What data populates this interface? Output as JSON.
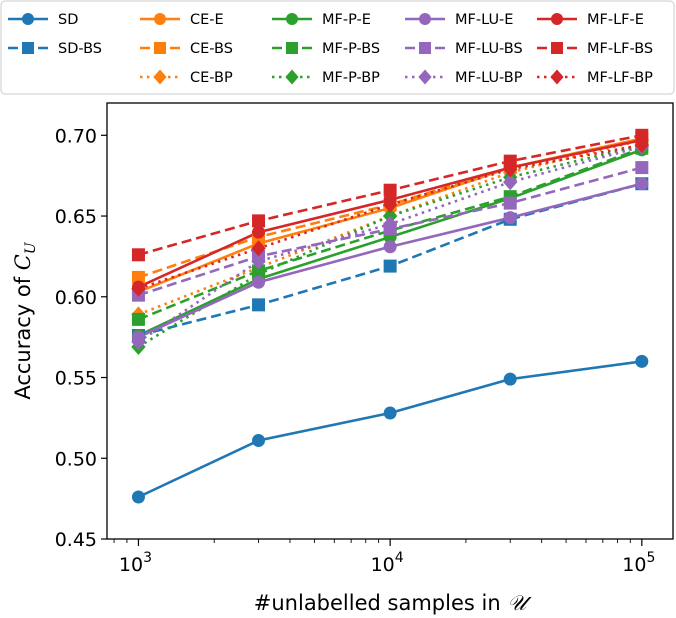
{
  "chart_data": {
    "type": "line",
    "x": [
      1000,
      3000,
      10000,
      30000,
      100000
    ],
    "xscale": "log",
    "xlim": [
      750,
      133000
    ],
    "ylim": [
      0.45,
      0.72
    ],
    "xlabel_prefix": "#unlabelled samples in ",
    "xlabel_math": "𝒰",
    "ylabel_prefix": "Accuracy of ",
    "ylabel_math": "C",
    "ylabel_sub": "U",
    "xtick_labels": [
      {
        "value": 1000,
        "base": "10",
        "exp": "3"
      },
      {
        "value": 10000,
        "base": "10",
        "exp": "4"
      },
      {
        "value": 100000,
        "base": "10",
        "exp": "5"
      }
    ],
    "ytick_labels": [
      "0.45",
      "0.50",
      "0.55",
      "0.60",
      "0.65",
      "0.70"
    ],
    "grid": false,
    "legend_position": "top, outside, 5 columns",
    "series": [
      {
        "name": "SD",
        "color": "#1f77b4",
        "dash": "solid",
        "marker": "circle",
        "values": [
          0.476,
          0.511,
          0.528,
          0.549,
          0.56
        ]
      },
      {
        "name": "SD-BS",
        "color": "#1f77b4",
        "dash": "dashed",
        "marker": "square",
        "values": [
          0.576,
          0.595,
          0.619,
          0.648,
          0.67
        ]
      },
      {
        "name": "CE-E",
        "color": "#ff7f0e",
        "dash": "solid",
        "marker": "circle",
        "values": [
          0.603,
          0.633,
          0.655,
          0.68,
          0.698
        ]
      },
      {
        "name": "CE-BS",
        "color": "#ff7f0e",
        "dash": "dashed",
        "marker": "square",
        "values": [
          0.612,
          0.637,
          0.657,
          0.68,
          0.698
        ]
      },
      {
        "name": "CE-BP",
        "color": "#ff7f0e",
        "dash": "dotted",
        "marker": "diamond",
        "values": [
          0.589,
          0.618,
          0.65,
          0.677,
          0.697
        ]
      },
      {
        "name": "MF-P-E",
        "color": "#2ca02c",
        "dash": "solid",
        "marker": "circle",
        "values": [
          0.576,
          0.611,
          0.637,
          0.661,
          0.691
        ]
      },
      {
        "name": "MF-P-BS",
        "color": "#2ca02c",
        "dash": "dashed",
        "marker": "square",
        "values": [
          0.586,
          0.616,
          0.641,
          0.662,
          0.692
        ]
      },
      {
        "name": "MF-P-BP",
        "color": "#2ca02c",
        "dash": "dotted",
        "marker": "diamond",
        "values": [
          0.569,
          0.614,
          0.65,
          0.674,
          0.694
        ]
      },
      {
        "name": "MF-LU-E",
        "color": "#9467bd",
        "dash": "solid",
        "marker": "circle",
        "values": [
          0.575,
          0.609,
          0.631,
          0.649,
          0.67
        ]
      },
      {
        "name": "MF-LU-BS",
        "color": "#9467bd",
        "dash": "dashed",
        "marker": "square",
        "values": [
          0.601,
          0.625,
          0.642,
          0.658,
          0.68
        ]
      },
      {
        "name": "MF-LU-BP",
        "color": "#9467bd",
        "dash": "dotted",
        "marker": "diamond",
        "values": [
          0.572,
          0.622,
          0.645,
          0.671,
          0.693
        ]
      },
      {
        "name": "MF-LF-E",
        "color": "#d62728",
        "dash": "solid",
        "marker": "circle",
        "values": [
          0.606,
          0.64,
          0.66,
          0.68,
          0.697
        ]
      },
      {
        "name": "MF-LF-BS",
        "color": "#d62728",
        "dash": "dashed",
        "marker": "square",
        "values": [
          0.626,
          0.647,
          0.666,
          0.684,
          0.7
        ]
      },
      {
        "name": "MF-LF-BP",
        "color": "#d62728",
        "dash": "dotted",
        "marker": "diamond",
        "values": [
          0.605,
          0.63,
          0.657,
          0.679,
          0.694
        ]
      }
    ]
  }
}
